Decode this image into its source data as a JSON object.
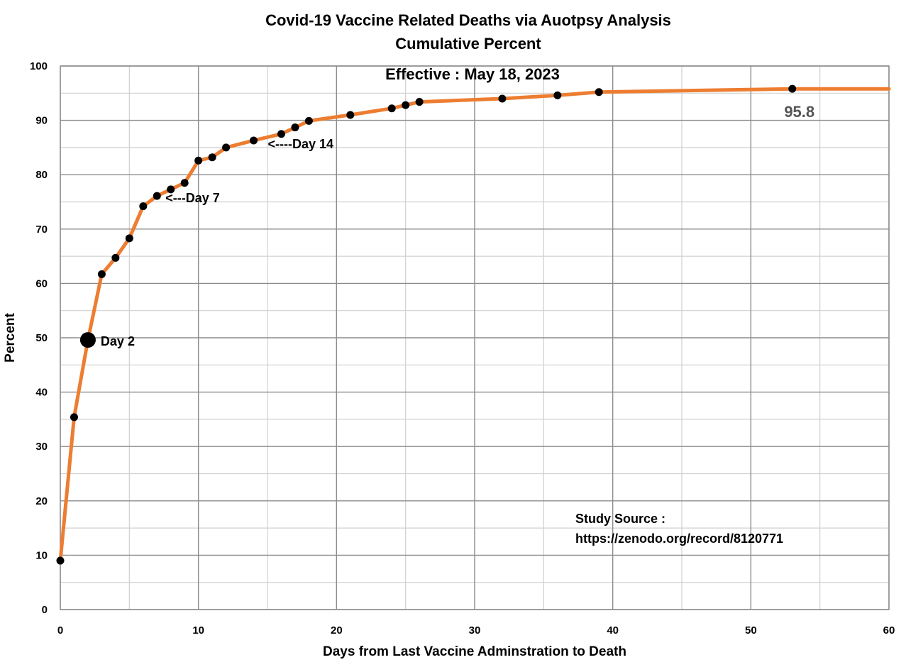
{
  "chart_data": {
    "type": "line",
    "title": "Covid-19 Vaccine Related Deaths via Auotpsy Analysis",
    "subtitle": "Cumulative Percent",
    "xlabel": "Days from Last Vaccine Adminstration to Death",
    "ylabel": "Percent",
    "xlim": [
      0,
      60
    ],
    "ylim": [
      0,
      100
    ],
    "x_ticks": [
      0,
      10,
      20,
      30,
      40,
      50,
      60
    ],
    "y_ticks": [
      0,
      10,
      20,
      30,
      40,
      50,
      60,
      70,
      80,
      90,
      100
    ],
    "grid": true,
    "line_color": "#ED7D31",
    "marker_color": "#000000",
    "series": [
      {
        "x": [
          0,
          1,
          2,
          3,
          4,
          5,
          6,
          7,
          8,
          9,
          10,
          11,
          12,
          14,
          16,
          17,
          18,
          21,
          24,
          25,
          26,
          32,
          36,
          39,
          53
        ],
        "y": [
          9.0,
          35.4,
          49.6,
          61.7,
          64.7,
          68.3,
          74.2,
          76.1,
          77.3,
          78.5,
          82.6,
          83.2,
          85.0,
          86.3,
          87.5,
          88.7,
          89.9,
          91.0,
          92.2,
          92.8,
          93.4,
          94.0,
          94.6,
          95.2,
          95.8
        ]
      }
    ],
    "line_extends_to_x": 60,
    "annotations": [
      {
        "x": 2,
        "y": 49.6,
        "text": "Day 2"
      },
      {
        "x": 7,
        "y": 76.1,
        "text": "<---Day 7"
      },
      {
        "x": 14,
        "y": 86.3,
        "text": "<----Day 14"
      },
      {
        "x": 53,
        "y": 95.8,
        "text": "95.8"
      }
    ],
    "effective_note": "Effective : May 18, 2023",
    "source_note_line1": "Study Source :",
    "source_note_line2": "https://zenodo.org/record/8120771"
  }
}
